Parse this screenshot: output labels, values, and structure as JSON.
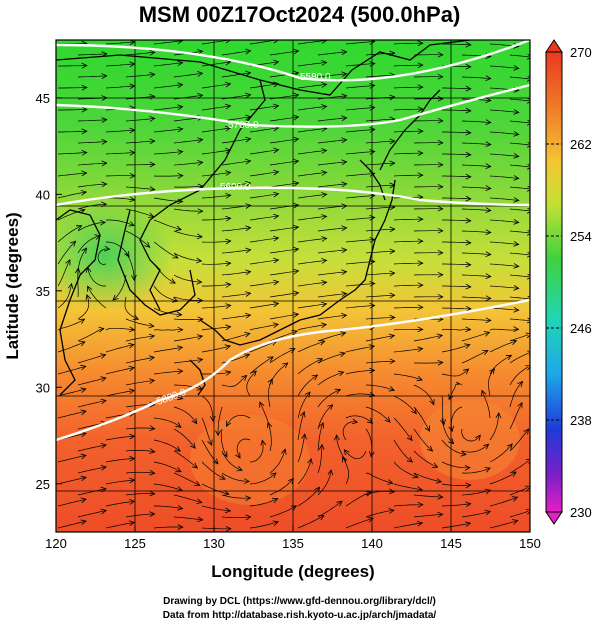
{
  "title": "MSM 00Z17Oct2024 (500.0hPa)",
  "axes": {
    "xlabel": "Longitude (degrees)",
    "ylabel": "Latitude  (degrees)",
    "xticks": [
      "120",
      "125",
      "130",
      "135",
      "140",
      "145",
      "150"
    ],
    "yticks": [
      "25",
      "30",
      "35",
      "40",
      "45"
    ]
  },
  "colorbar": {
    "ticks": [
      "270",
      "262",
      "254",
      "246",
      "238",
      "230"
    ]
  },
  "contours": [
    {
      "label": "5880.0"
    },
    {
      "label": "5700.0"
    },
    {
      "label": "5600.0"
    },
    {
      "label": "5580.0"
    }
  ],
  "footer": {
    "line1": "Drawing by DCL (https://www.gfd-dennou.org/library/dcl/)",
    "line2": "Data from http://database.rish.kyoto-u.ac.jp/arch/jmadata/"
  },
  "chart_data": {
    "type": "heatmap",
    "variable": "temperature with streamlines",
    "xlim": [
      120,
      150
    ],
    "ylim": [
      22.5,
      48
    ],
    "colorbar_range": [
      230,
      270
    ],
    "temperature_field_estimate": [
      {
        "lat": 47,
        "lon": 120,
        "value": 256
      },
      {
        "lat": 47,
        "lon": 135,
        "value": 257
      },
      {
        "lat": 47,
        "lon": 150,
        "value": 256
      },
      {
        "lat": 42,
        "lon": 120,
        "value": 258
      },
      {
        "lat": 42,
        "lon": 135,
        "value": 259
      },
      {
        "lat": 42,
        "lon": 150,
        "value": 258
      },
      {
        "lat": 37,
        "lon": 123,
        "value": 257
      },
      {
        "lat": 37,
        "lon": 135,
        "value": 262
      },
      {
        "lat": 37,
        "lon": 150,
        "value": 263
      },
      {
        "lat": 33,
        "lon": 120,
        "value": 265
      },
      {
        "lat": 33,
        "lon": 135,
        "value": 265
      },
      {
        "lat": 33,
        "lon": 150,
        "value": 265
      },
      {
        "lat": 28,
        "lon": 120,
        "value": 267
      },
      {
        "lat": 28,
        "lon": 135,
        "value": 268
      },
      {
        "lat": 28,
        "lon": 150,
        "value": 267
      },
      {
        "lat": 23,
        "lon": 120,
        "value": 268
      },
      {
        "lat": 23,
        "lon": 135,
        "value": 269
      },
      {
        "lat": 23,
        "lon": 150,
        "value": 268
      }
    ],
    "grid": true
  }
}
